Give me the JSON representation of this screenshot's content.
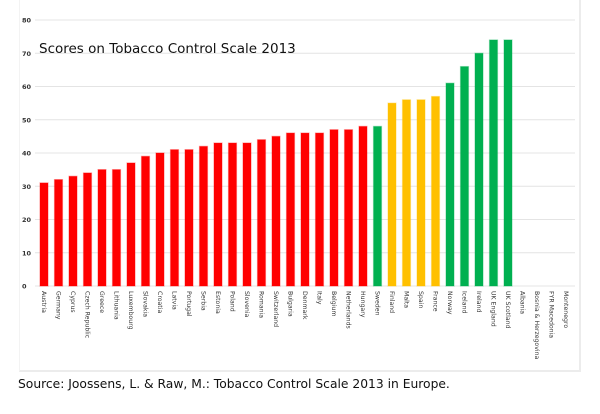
{
  "chart_data": {
    "type": "bar",
    "title": "Scores on Tobacco Control Scale 2013",
    "xlabel": "",
    "ylabel": "",
    "ylim": [
      0,
      80
    ],
    "yticks": [
      0,
      10,
      20,
      30,
      40,
      50,
      60,
      70,
      80
    ],
    "grid": true,
    "legend": "none",
    "categories": [
      "Austria",
      "Germany",
      "Cyprus",
      "Czech Republic",
      "Greece",
      "Lithuania",
      "Luxembourg",
      "Slovakia",
      "Croatia",
      "Latvia",
      "Portugal",
      "Serbia",
      "Estonia",
      "Poland",
      "Slovenia",
      "Romania",
      "Switzerland",
      "Bulgaria",
      "Denmark",
      "Italy",
      "Belgium",
      "Netherlands",
      "Hungary",
      "Sweden",
      "Finland",
      "Malta",
      "Spain",
      "France",
      "Norway",
      "Iceland",
      "Ireland",
      "UK England",
      "UK Scotland",
      "Albania",
      "Bosnia & Herzegovina",
      "FYR Macedonia",
      "Montenegro"
    ],
    "values": [
      31,
      32,
      33,
      34,
      35,
      35,
      37,
      39,
      40,
      41,
      41,
      42,
      43,
      43,
      43,
      44,
      45,
      46,
      46,
      46,
      47,
      47,
      48,
      48,
      55,
      56,
      56,
      57,
      61,
      66,
      70,
      74,
      74,
      null,
      null,
      null,
      null
    ],
    "bar_colors": [
      "red",
      "red",
      "red",
      "red",
      "red",
      "red",
      "red",
      "red",
      "red",
      "red",
      "red",
      "red",
      "red",
      "red",
      "red",
      "red",
      "red",
      "red",
      "red",
      "red",
      "red",
      "red",
      "red",
      "green",
      "yellow",
      "yellow",
      "yellow",
      "yellow",
      "green",
      "green",
      "green",
      "green",
      "green",
      null,
      null,
      null,
      null
    ],
    "palette": {
      "red": "#ff0000",
      "yellow": "#ffc000",
      "green": "#00b050",
      "grid": "#e4e4e4"
    }
  },
  "source": "Source: Joossens, L. & Raw, M.: Tobacco Control Scale 2013 in Europe."
}
